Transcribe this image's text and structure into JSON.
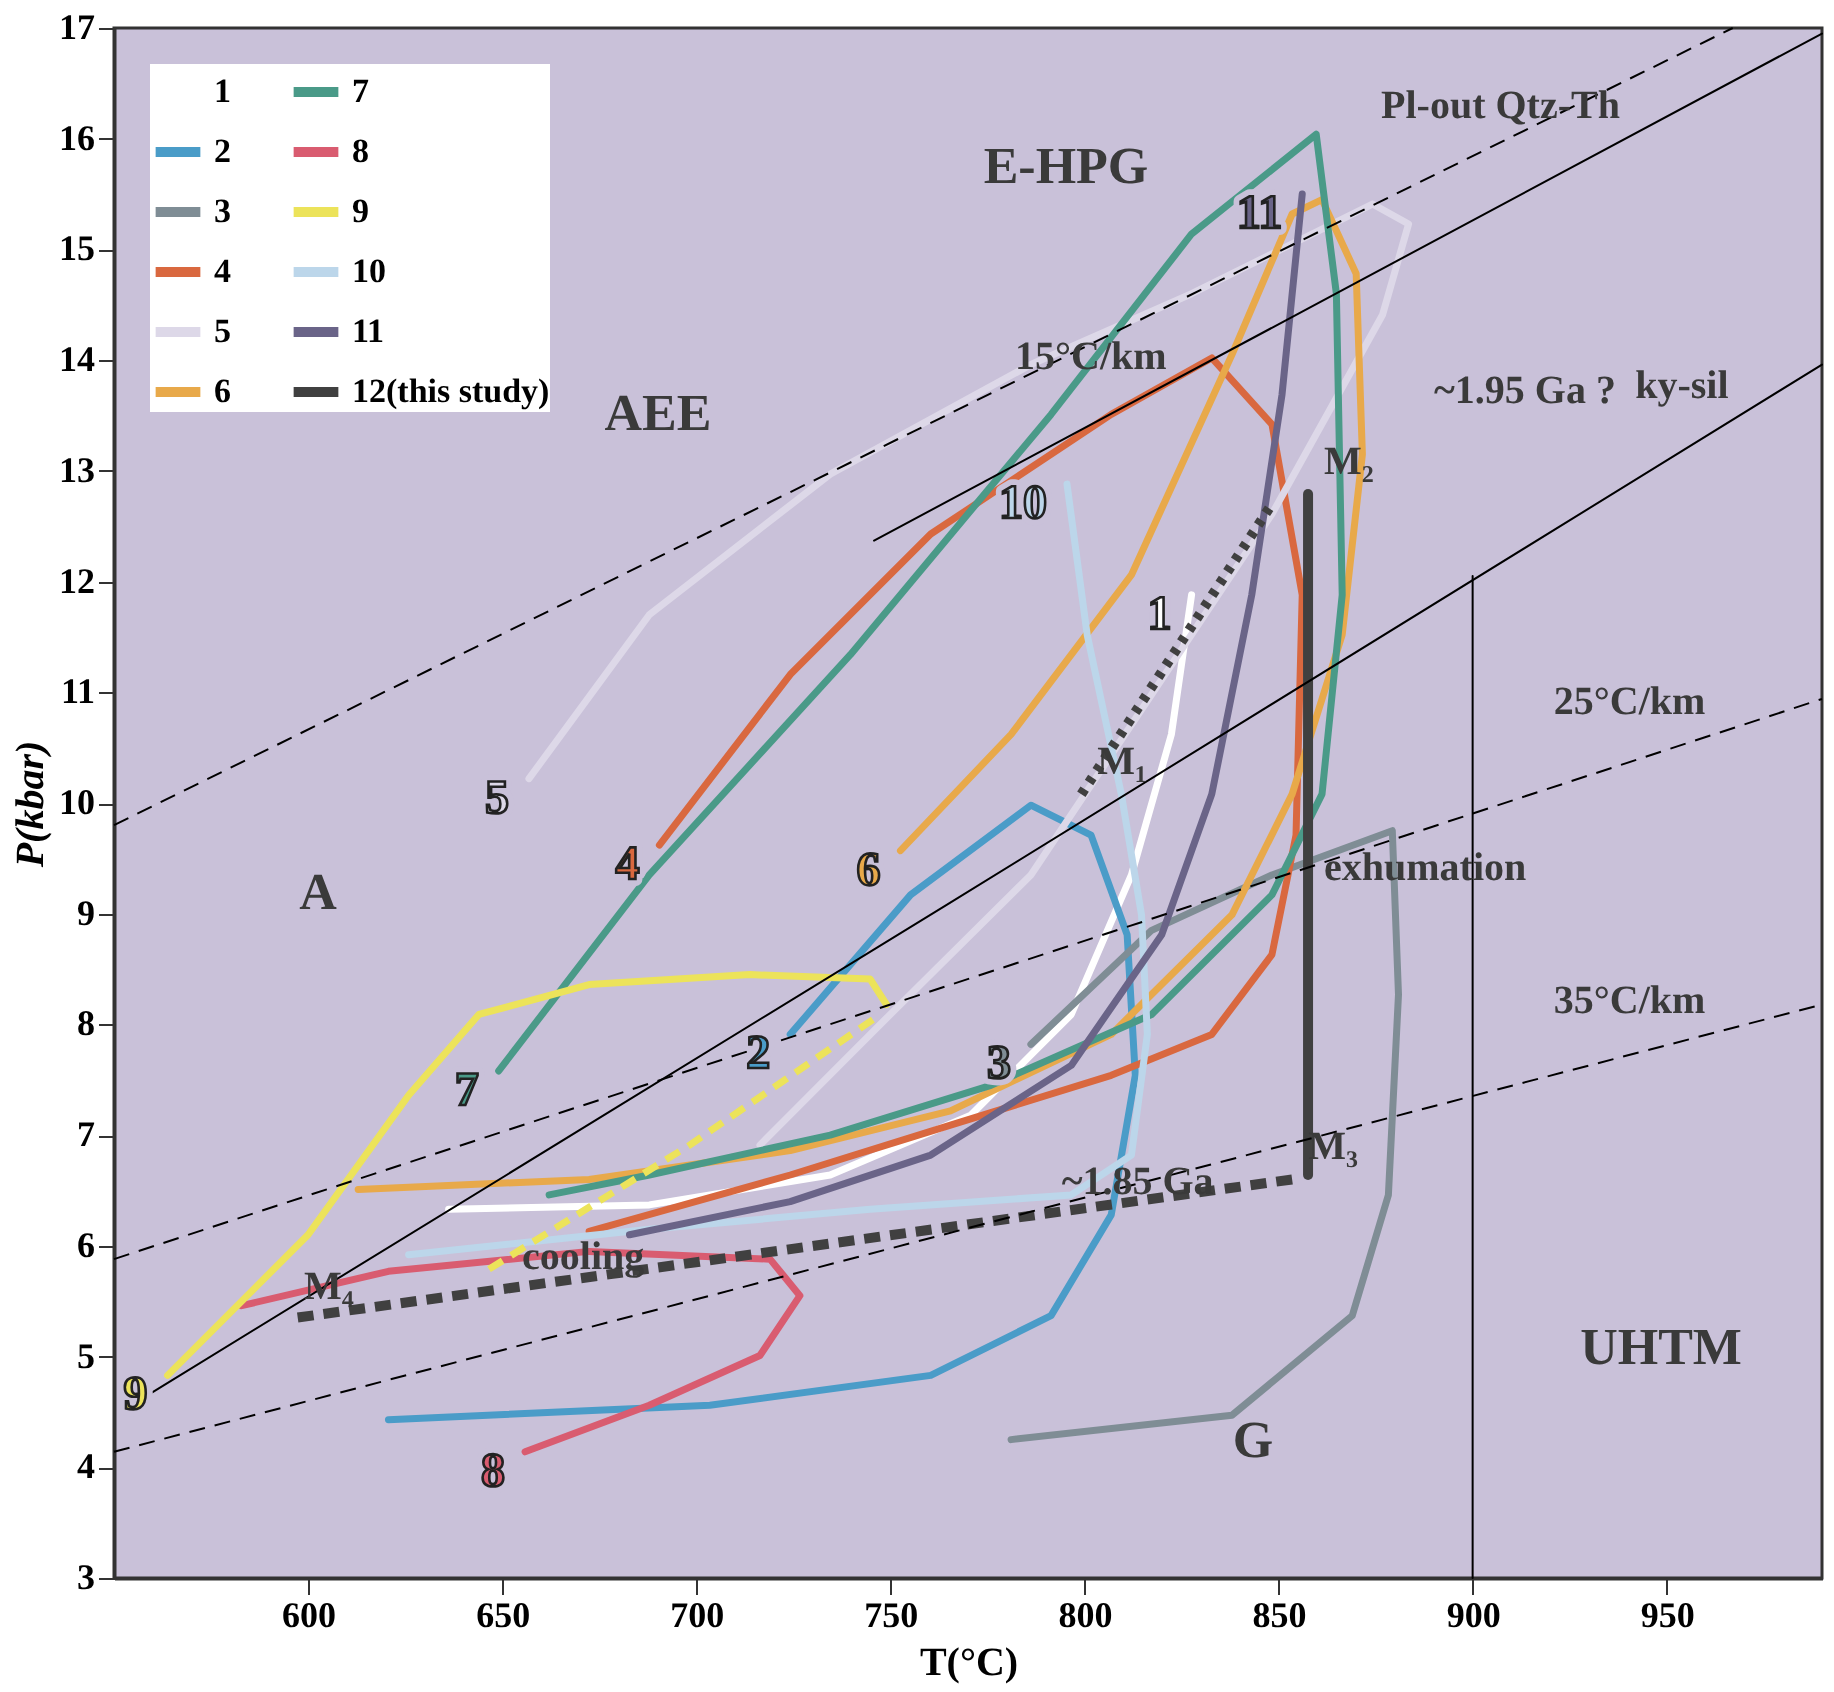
{
  "chart_data": {
    "type": "line",
    "xlabel": "T(°C)",
    "ylabel": "P(kbar)",
    "xlim": [
      550,
      990
    ],
    "ylim": [
      3,
      17
    ],
    "xticks": [
      600,
      650,
      700,
      750,
      800,
      850,
      900,
      950
    ],
    "yticks": [
      3,
      4,
      5,
      6,
      7,
      8,
      9,
      10,
      11,
      12,
      13,
      14,
      15,
      16,
      17
    ],
    "grid": false,
    "legend": "top left",
    "series": [
      {
        "name": "1",
        "color": "#ffffff",
        "x": [
          827.6,
          822.4,
          812.1,
          796.6,
          770.7,
          734.5,
          687.9,
          636.2
        ],
        "values": [
          11.88,
          10.62,
          9.35,
          8.09,
          7.18,
          6.64,
          6.37,
          6.33
        ]
      },
      {
        "name": "2",
        "color": "#4a9cc8",
        "x": [
          724.2,
          755.2,
          786.2,
          801.7,
          811.0,
          813.1,
          806.9,
          791.4,
          760.4,
          703.5,
          620.7
        ],
        "values": [
          7.91,
          9.17,
          9.98,
          9.71,
          8.81,
          7.54,
          6.28,
          5.37,
          4.83,
          4.56,
          4.43
        ]
      },
      {
        "name": "3",
        "color": "#7f8d95",
        "x": [
          786.2,
          817.3,
          848.3,
          879.3,
          880.9,
          878.3,
          869.0,
          838.0,
          781.1
        ],
        "values": [
          7.82,
          8.85,
          9.35,
          9.75,
          8.27,
          6.46,
          5.37,
          4.47,
          4.25
        ]
      },
      {
        "name": "4",
        "color": "#d9683f",
        "x": [
          690.5,
          724.2,
          760.4,
          806.9,
          832.8,
          848.3,
          856.1,
          854.5,
          848.3,
          832.8,
          806.9,
          765.5,
          724.2,
          672.4
        ],
        "values": [
          9.62,
          11.16,
          12.43,
          13.51,
          14.02,
          13.42,
          11.88,
          9.71,
          8.63,
          7.91,
          7.54,
          7.09,
          6.64,
          6.13
        ]
      },
      {
        "name": "5",
        "color": "#ddd8e8",
        "x": [
          656.9,
          687.9,
          734.5,
          786.2,
          827.6,
          874.2,
          883.5,
          876.8,
          848.3,
          817.3,
          786.2,
          744.8,
          716.4
        ],
        "values": [
          10.22,
          11.7,
          12.97,
          13.96,
          14.6,
          15.41,
          15.23,
          14.41,
          12.61,
          10.98,
          9.35,
          7.91,
          6.91
        ]
      },
      {
        "name": "6",
        "color": "#e8a94a",
        "x": [
          752.6,
          781.1,
          812.1,
          838.0,
          853.5,
          861.2,
          870.0,
          871.6,
          866.4,
          853.5,
          838.0,
          806.9,
          765.5,
          724.2,
          672.4,
          612.9
        ],
        "values": [
          9.57,
          10.62,
          12.06,
          14.05,
          15.32,
          15.45,
          14.78,
          13.15,
          11.52,
          10.08,
          8.99,
          7.91,
          7.22,
          6.86,
          6.6,
          6.51
        ]
      },
      {
        "name": "7",
        "color": "#4a9a88",
        "x": [
          649.1,
          687.9,
          739.7,
          791.4,
          827.6,
          859.7,
          864.9,
          866.4,
          861.2,
          848.3,
          817.3,
          775.9,
          734.5,
          687.9,
          662.1
        ],
        "values": [
          7.58,
          9.35,
          11.34,
          13.51,
          15.14,
          16.04,
          14.6,
          11.88,
          10.08,
          9.17,
          8.09,
          7.45,
          7.0,
          6.64,
          6.46
        ]
      },
      {
        "name": "8",
        "color": "#d95c70",
        "x": [
          655.9,
          687.9,
          716.4,
          726.7,
          719.0,
          672.4,
          620.7,
          582.9
        ],
        "values": [
          4.14,
          4.56,
          5.01,
          5.55,
          5.88,
          5.95,
          5.77,
          5.46
        ]
      },
      {
        "name": "9",
        "color": "#ece35a",
        "x": [
          563.8,
          600.0,
          625.9,
          644.0,
          672.4,
          713.8,
          744.8,
          749.0
        ],
        "values": [
          4.83,
          6.1,
          7.36,
          8.09,
          8.36,
          8.45,
          8.41,
          8.18
        ]
      },
      {
        "name": "10",
        "color": "#bcd6ea",
        "x": [
          795.5,
          800.7,
          809.5,
          814.7,
          816.2,
          812.1,
          796.6,
          744.8,
          687.9,
          625.9
        ],
        "values": [
          12.88,
          11.52,
          10.08,
          8.99,
          7.91,
          6.82,
          6.46,
          6.33,
          6.15,
          5.92
        ]
      },
      {
        "name": "11",
        "color": "#6a6488",
        "x": [
          856.1,
          850.9,
          843.1,
          832.8,
          819.9,
          796.6,
          760.4,
          724.2,
          682.8
        ],
        "values": [
          15.5,
          13.69,
          11.88,
          10.08,
          8.81,
          7.63,
          6.82,
          6.4,
          6.1
        ]
      },
      {
        "name": "12(this study)",
        "color": "#404040",
        "x": [
          857.6,
          857.6
        ],
        "values": [
          12.79,
          6.64
        ]
      },
      {
        "color": "#ece35a",
        "line_style": "dashed",
        "x": [
          646.6,
          698.3,
          747.4
        ],
        "values": [
          5.79,
          6.91,
          8.09
        ]
      },
      {
        "color": "#404040",
        "line_style": "dotted",
        "x": [
          799.2,
          848.3
        ],
        "values": [
          10.08,
          12.7
        ]
      },
      {
        "color": "#404040",
        "line_style": "dashed",
        "x": [
          853.5,
          594.8
        ],
        "values": [
          6.6,
          5.34
        ]
      },
      {
        "color": "#000000",
        "line_style": "dashed",
        "x": [
          550,
          967
        ],
        "values": [
          9.8,
          17.0
        ]
      },
      {
        "color": "#000000",
        "line_style": "dashed",
        "x": [
          550,
          990
        ],
        "values": [
          5.88,
          10.94
        ]
      },
      {
        "color": "#000000",
        "line_style": "dashed",
        "x": [
          550,
          990
        ],
        "values": [
          4.14,
          8.18
        ]
      },
      {
        "color": "#000000",
        "x": [
          745.8,
          990
        ],
        "values": [
          12.37,
          16.95
        ]
      },
      {
        "color": "#000000",
        "x": [
          558.6,
          764.5,
          990
        ],
        "values": [
          4.65,
          9.08,
          13.96
        ]
      },
      {
        "color": "#000000",
        "x": [
          900,
          900
        ],
        "values": [
          3,
          12.05
        ]
      }
    ],
    "annotations": [
      {
        "text": "15°C/km",
        "x": 778,
        "y": 13.74
      },
      {
        "text": "25°C/km",
        "x": 962,
        "y": 10.62
      },
      {
        "text": "35°C/km",
        "x": 962,
        "y": 7.92
      },
      {
        "text": "Pl-out Qtz-Th",
        "x": 940,
        "y": 16.01
      },
      {
        "text": "ky-sil",
        "x": 968,
        "y": 13.48
      },
      "A",
      "AEE",
      "E-HPG",
      "G",
      "UHTM",
      "~1.95 Ga ?",
      {
        "text": "M₂",
        "x": 857.6,
        "y": 12.79
      },
      {
        "text": "M₁",
        "x": 799.2,
        "y": 10.08
      },
      {
        "text": "M₃",
        "x": 853.5,
        "y": 6.6
      },
      {
        "text": "M₄",
        "x": 594.8,
        "y": 5.34
      },
      {
        "text": "exhumation",
        "x": 857.6,
        "y": 9.12
      },
      {
        "text": "cooling",
        "x": 651,
        "y": 5.61
      },
      {
        "text": "~1.85 Ga",
        "x": 790,
        "y": 6.29
      }
    ]
  }
}
